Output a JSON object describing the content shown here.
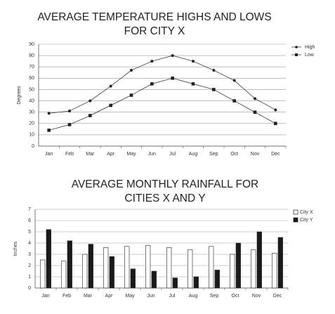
{
  "chart_data": [
    {
      "type": "line",
      "title": "AVERAGE TEMPERATURE HIGHS AND LOWS FOR CITY X",
      "y_label": "Degrees",
      "categories": [
        "Jan",
        "Feb",
        "Mar",
        "Apr",
        "May",
        "Jun",
        "Jul",
        "Aug",
        "Sep",
        "Oct",
        "Nov",
        "Dec"
      ],
      "series": [
        {
          "name": "High",
          "color": "#222222",
          "values": [
            29,
            31,
            40,
            53,
            67,
            75,
            80,
            75,
            67,
            58,
            42,
            32
          ]
        },
        {
          "name": "Low",
          "color": "#222222",
          "values": [
            14,
            19,
            27,
            36,
            45,
            55,
            60,
            55,
            50,
            40,
            30,
            20
          ]
        }
      ],
      "ylim": [
        0,
        90
      ],
      "yticks": [
        0,
        10,
        20,
        30,
        40,
        50,
        60,
        70,
        80,
        90
      ],
      "grid": true,
      "legend": "right"
    },
    {
      "type": "bar",
      "title": "AVERAGE MONTHLY RAINFALL FOR CITIES X AND Y",
      "y_label": "Inches",
      "categories": [
        "Jan",
        "Feb",
        "Mar",
        "Apr",
        "May",
        "Jun",
        "Jul",
        "Aug",
        "Sep",
        "Oct",
        "Nov",
        "Dec"
      ],
      "series": [
        {
          "name": "City X",
          "color": "#ffffff",
          "values": [
            2.5,
            2.4,
            3.0,
            3.6,
            3.7,
            3.8,
            3.6,
            3.4,
            3.7,
            3.0,
            3.4,
            3.1
          ]
        },
        {
          "name": "City Y",
          "color": "#1a1a1a",
          "values": [
            5.2,
            4.2,
            3.9,
            2.8,
            1.7,
            1.5,
            0.9,
            1.0,
            1.6,
            4.0,
            5.0,
            4.5
          ]
        }
      ],
      "ylim": [
        0,
        7
      ],
      "yticks": [
        0,
        1,
        2,
        3,
        4,
        5,
        6,
        7
      ],
      "grid": true,
      "legend": "right"
    }
  ]
}
